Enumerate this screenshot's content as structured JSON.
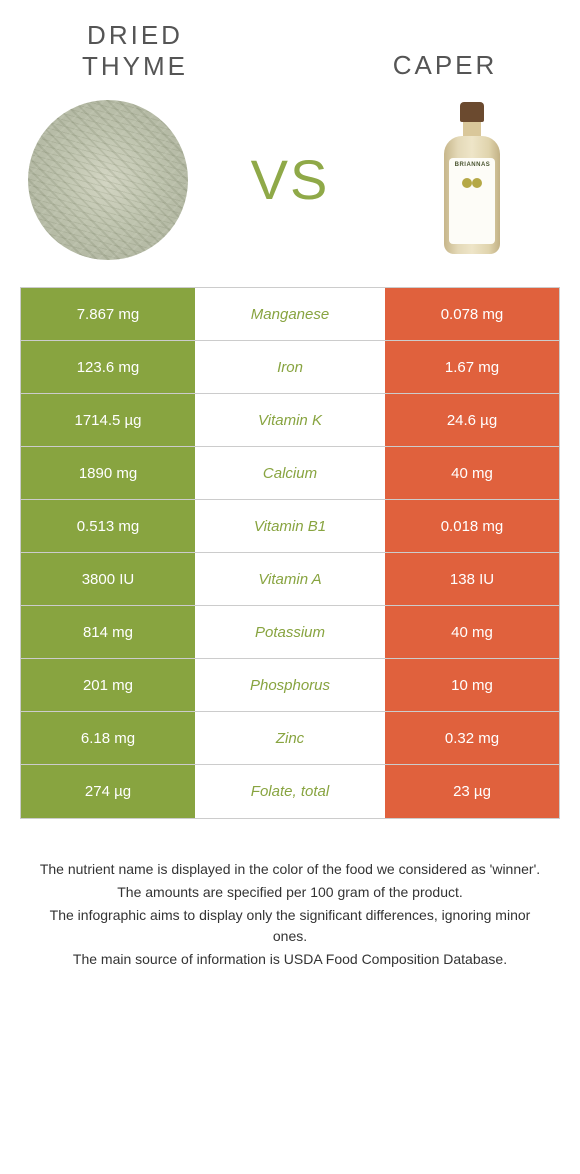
{
  "colors": {
    "left_bg": "#88a440",
    "right_bg": "#e0613d",
    "nutrient_win_left": "#88a440",
    "nutrient_win_right": "#e0613d",
    "vs": "#8fa948"
  },
  "food_left": {
    "title": "Dried thyme"
  },
  "food_right": {
    "title": "Caper"
  },
  "vs_label": "VS",
  "rows": [
    {
      "left": "7.867 mg",
      "nutrient": "Manganese",
      "right": "0.078 mg",
      "winner": "left"
    },
    {
      "left": "123.6 mg",
      "nutrient": "Iron",
      "right": "1.67 mg",
      "winner": "left"
    },
    {
      "left": "1714.5 µg",
      "nutrient": "Vitamin K",
      "right": "24.6 µg",
      "winner": "left"
    },
    {
      "left": "1890 mg",
      "nutrient": "Calcium",
      "right": "40 mg",
      "winner": "left"
    },
    {
      "left": "0.513 mg",
      "nutrient": "Vitamin B1",
      "right": "0.018 mg",
      "winner": "left"
    },
    {
      "left": "3800 IU",
      "nutrient": "Vitamin A",
      "right": "138 IU",
      "winner": "left"
    },
    {
      "left": "814 mg",
      "nutrient": "Potassium",
      "right": "40 mg",
      "winner": "left"
    },
    {
      "left": "201 mg",
      "nutrient": "Phosphorus",
      "right": "10 mg",
      "winner": "left"
    },
    {
      "left": "6.18 mg",
      "nutrient": "Zinc",
      "right": "0.32 mg",
      "winner": "left"
    },
    {
      "left": "274 µg",
      "nutrient": "Folate, total",
      "right": "23 µg",
      "winner": "left"
    }
  ],
  "footer": {
    "line1": "The nutrient name is displayed in the color of the food we considered as 'winner'.",
    "line2": "The amounts are specified per 100 gram of the product.",
    "line3": "The infographic aims to display only the significant differences, ignoring minor ones.",
    "line4": "The main source of information is USDA Food Composition Database."
  }
}
